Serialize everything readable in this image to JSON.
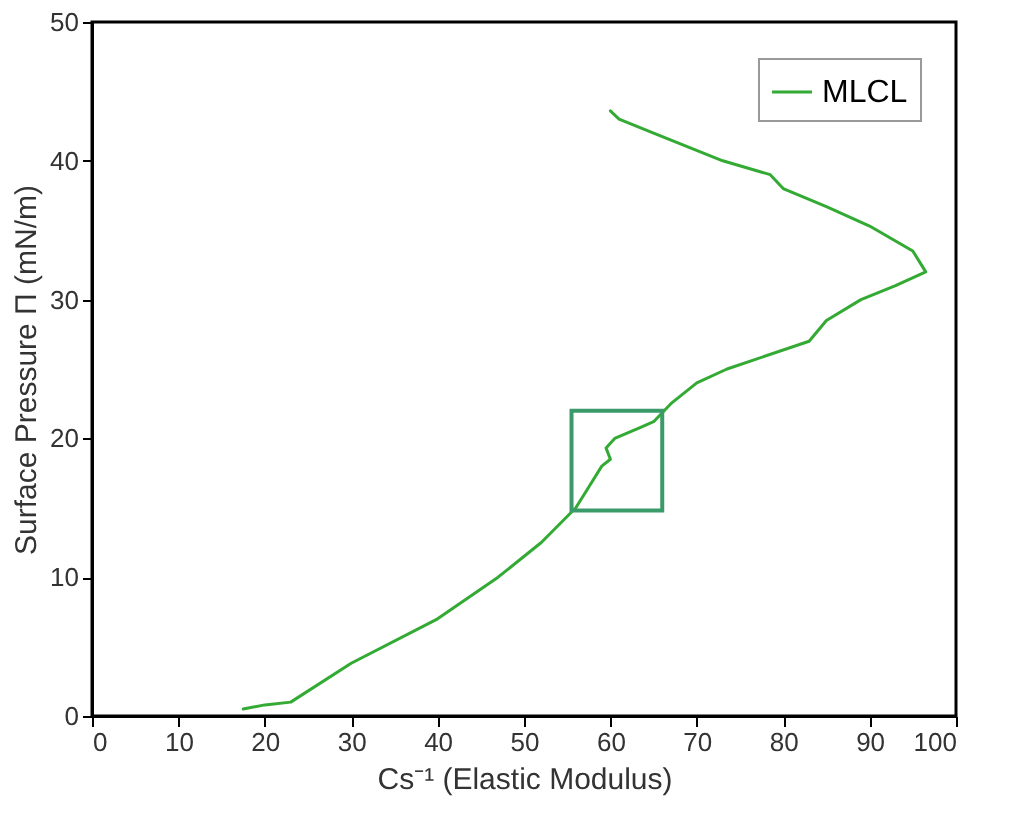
{
  "chart_data": {
    "type": "line",
    "xlabel": "Cs⁻¹ (Elastic Modulus)",
    "ylabel": "Surface Pressure Π (mN/m)",
    "xlim": [
      0,
      100
    ],
    "ylim": [
      0,
      50
    ],
    "xticks": [
      0,
      10,
      20,
      30,
      40,
      50,
      60,
      70,
      80,
      90,
      100
    ],
    "yticks": [
      0,
      10,
      20,
      30,
      40,
      50
    ],
    "grid": false,
    "legend": "top right",
    "marker": "none",
    "line_style": "solid",
    "series": [
      {
        "name": "MLCL",
        "color": "#33aa33",
        "x": [
          17.5,
          20,
          23,
          30,
          40,
          47,
          52,
          56,
          57.5,
          59,
          60,
          59.5,
          60.5,
          63.5,
          65,
          67,
          70,
          73.5,
          83,
          85,
          89,
          93,
          96.5,
          95,
          90,
          85,
          80,
          78.5,
          73,
          65,
          61,
          60
        ],
        "values": [
          0.5,
          0.8,
          1,
          3.8,
          7,
          10,
          12.5,
          15,
          16.5,
          18,
          18.5,
          19.3,
          20,
          20.8,
          21.2,
          22.5,
          24,
          25,
          27,
          28.5,
          30,
          31,
          32,
          33.5,
          35.3,
          36.7,
          38,
          39,
          40,
          42,
          43,
          43.6
        ]
      }
    ]
  }
}
